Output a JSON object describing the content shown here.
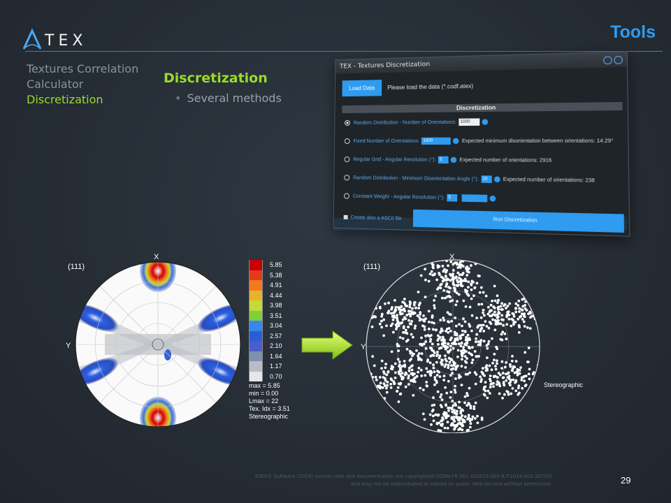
{
  "header": {
    "logo_text": "TEX",
    "page_title": "Tools"
  },
  "nav": {
    "item1": "Textures Correlation",
    "item2": "Calculator",
    "item3": "Discretization"
  },
  "section": {
    "title": "Discretization",
    "bullet": "Several methods"
  },
  "window": {
    "title": "TEX - Textures Discretization",
    "load_button": "Load Data",
    "load_prompt": "Please load the data (*.codf.atex)",
    "section_header": "Discretization",
    "options": [
      {
        "label": "Random Distribution -  Number of Orientations:",
        "value": "1000",
        "expected": ""
      },
      {
        "label": "Fixed Number of Orientations:",
        "value": "1000",
        "expected": "Expected minimum disorientation between orientations: 14.29°"
      },
      {
        "label": "Regular Grid - Angular Resolution (°):",
        "value": "5",
        "expected": "Expected number of orientations: 2916"
      },
      {
        "label": "Random Distribution - Minimum Disorientation Angle (°):",
        "value": "10",
        "expected": "Expected number of orientations: 238"
      },
      {
        "label": "Constant Weight - Angular Resolution (°):",
        "value": "5",
        "expected": ""
      }
    ],
    "ascii_label": "Create also a ASCII file",
    "run_button": "Run Discretization"
  },
  "pole_figure_left": {
    "label": "(111)",
    "axis_x": "X",
    "axis_y": "Y",
    "legend": [
      "5.85",
      "5.38",
      "4.91",
      "4.44",
      "3.98",
      "3.51",
      "3.04",
      "2.57",
      "2.10",
      "1.64",
      "1.17",
      "0.70"
    ],
    "legend_colors": [
      "#c80000",
      "#e53a1f",
      "#f07a1c",
      "#e9b22a",
      "#c7d93a",
      "#7fcf3a",
      "#3a86f0",
      "#2a5ed8",
      "#4a5ec8",
      "#8090b0",
      "#b8bcc4",
      "#e4e6ea"
    ],
    "stats": [
      "max = 5.85",
      "min = 0.00",
      "Lmax = 22",
      "Tex. Idx = 3.51",
      "Stereographic"
    ]
  },
  "pole_figure_right": {
    "label": "(111)",
    "axis_x": "X",
    "axis_y": "Y",
    "projection": "Stereographic"
  },
  "footer": {
    "line1": "ATEX© Software (2018) source code and documentation are copyrighted (IDDN.FR.001.420015.000.R.P.2014.000.20700)",
    "line2": "and may not be redistributed or placed on public Web servers without permission.",
    "page_number": "29"
  },
  "colors": {
    "accent_blue": "#2e9bf0",
    "accent_green": "#9adb2c"
  }
}
